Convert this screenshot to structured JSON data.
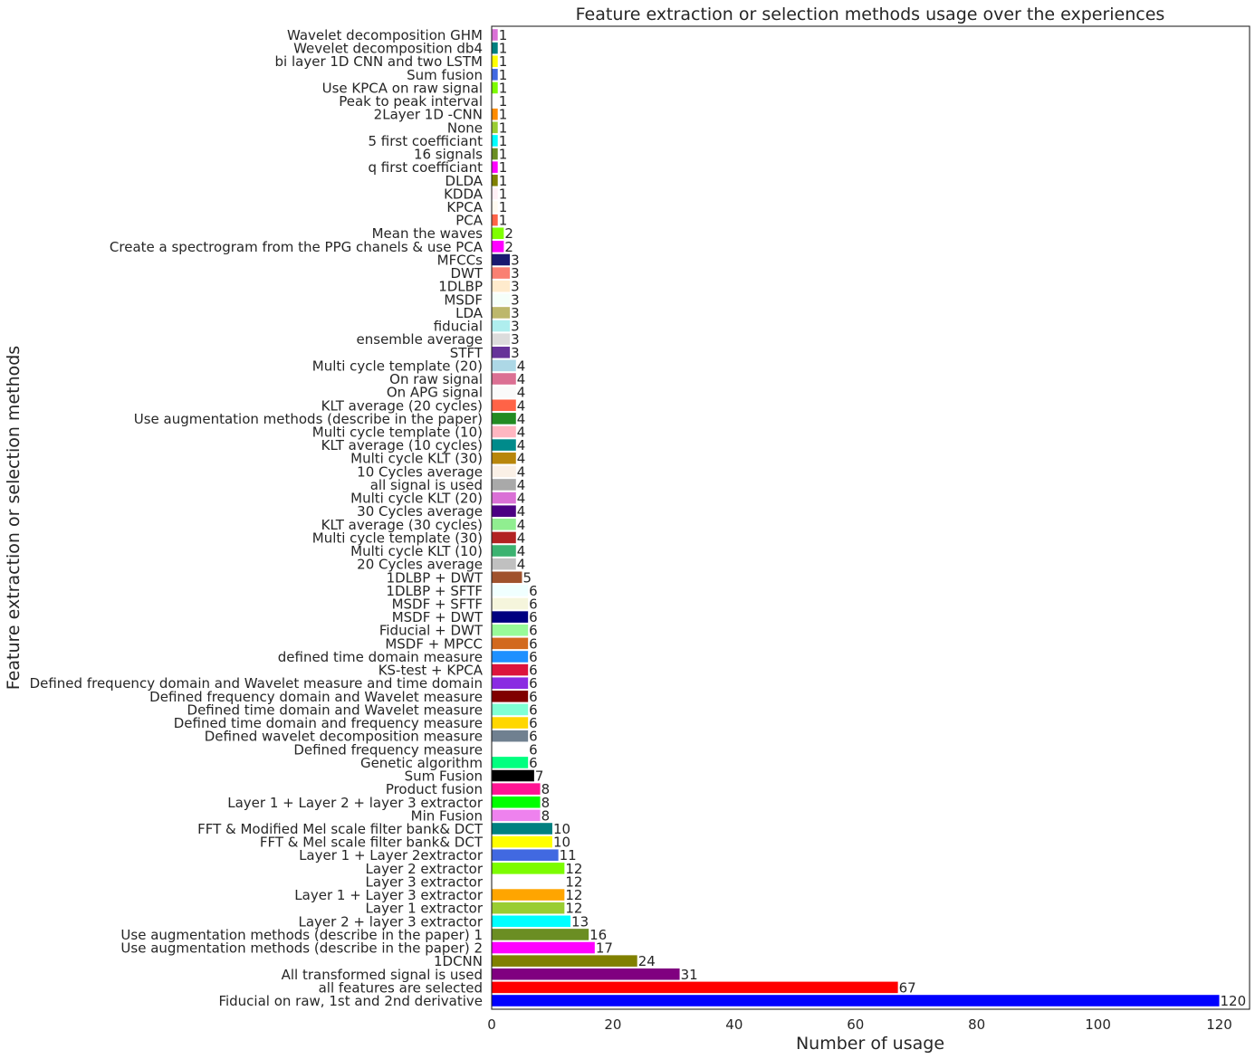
{
  "chart_data": {
    "type": "bar",
    "orientation": "horizontal",
    "title": "Feature extraction or selection methods usage over the experiences",
    "xlabel": "Number of usage",
    "ylabel": "Feature extraction or selection methods",
    "xlim": [
      0,
      125
    ],
    "x_ticks": [
      0,
      20,
      40,
      60,
      80,
      100,
      120
    ],
    "grid": false,
    "categories": [
      "Wavelet decomposition GHM",
      "Wevelet decomposition db4",
      "bi layer 1D CNN and two LSTM",
      "Sum fusion",
      "Use KPCA on raw signal",
      "Peak to peak interval",
      "2Layer 1D -CNN",
      "None",
      "5 first coefficiant",
      "16 signals",
      "q first coefficiant",
      "DLDA",
      "KDDA",
      "KPCA",
      "PCA",
      "Mean the waves",
      "Create a spectrogram from the PPG chanels & use PCA",
      "MFCCs",
      "DWT",
      "1DLBP",
      "MSDF",
      "LDA",
      "fiducial",
      "ensemble average",
      "STFT",
      "Multi cycle template (20)",
      "On raw signal",
      "On APG signal",
      "KLT average (20 cycles)",
      "Use augmentation methods (describe in the paper)",
      "Multi cycle template (10)",
      "KLT average (10 cycles)",
      "Multi cycle KLT (30)",
      "10 Cycles average",
      "all signal is used",
      "Multi cycle KLT (20)",
      "30 Cycles average",
      "KLT average (30 cycles)",
      "Multi cycle template (30)",
      "Multi cycle KLT (10)",
      "20 Cycles average",
      "1DLBP + DWT",
      "1DLBP + SFTF",
      "MSDF + SFTF",
      "MSDF + DWT",
      "Fiducial + DWT",
      "MSDF + MPCC",
      "defined time domain measure",
      "KS-test + KPCA",
      "Defined frequency domain and Wavelet measure and time domain",
      "Defined frequency domain and Wavelet measure",
      "Defined time domain and Wavelet measure",
      "Defined time domain and frequency measure",
      "Defined wavelet decomposition measure",
      "Defined frequency measure",
      "Genetic algorithm",
      "Sum Fusion",
      "Product fusion",
      "Layer 1 + Layer 2 + layer 3 extractor",
      "Min Fusion",
      "FFT & Modified Mel scale filter bank& DCT",
      "FFT & Mel scale filter bank& DCT",
      "Layer 1 + Layer 2extractor",
      "Layer 2 extractor",
      "Layer 3 extractor",
      "Layer 1 + Layer 3  extractor",
      "Layer 1 extractor",
      "Layer 2 + layer 3 extractor",
      "Use augmentation methods (describe in the paper) 1",
      "Use augmentation methods (describe in the paper) 2",
      "1DCNN",
      "All transformed signal is used",
      "all features are selected",
      "Fiducial on raw, 1st and 2nd derivative"
    ],
    "values": [
      1,
      1,
      1,
      1,
      1,
      1,
      1,
      1,
      1,
      1,
      1,
      1,
      1,
      1,
      1,
      2,
      2,
      3,
      3,
      3,
      3,
      3,
      3,
      3,
      3,
      4,
      4,
      4,
      4,
      4,
      4,
      4,
      4,
      4,
      4,
      4,
      4,
      4,
      4,
      4,
      4,
      5,
      6,
      6,
      6,
      6,
      6,
      6,
      6,
      6,
      6,
      6,
      6,
      6,
      6,
      6,
      7,
      8,
      8,
      8,
      10,
      10,
      11,
      12,
      12,
      12,
      12,
      13,
      16,
      17,
      24,
      31,
      67,
      120
    ],
    "value_labels": [
      "1",
      "1",
      "1",
      "1",
      "1",
      "1",
      "1",
      "1",
      "1",
      "1",
      "1",
      "1",
      "1",
      "1",
      "1",
      "2",
      "2",
      "3",
      "3",
      "3",
      "3",
      "3",
      "3",
      "3",
      "3",
      "4",
      "4",
      "4",
      "4",
      "4",
      "4",
      "4",
      "4",
      "4",
      "4",
      "4",
      "4",
      "4",
      "4",
      "4",
      "4",
      "5",
      "6",
      "6",
      "6",
      "6",
      "6",
      "6",
      "6",
      "6",
      "6",
      "6",
      "6",
      "6",
      "6",
      "6",
      "7",
      "8",
      "8",
      "8",
      "10",
      "10",
      "11",
      "12",
      "12",
      "12",
      "12",
      "13",
      "16",
      "17",
      "24",
      "31",
      "67",
      "120"
    ],
    "colors": [
      "#da70d6",
      "#008080",
      "#ffff00",
      "#4169e1",
      "#7cfc00",
      "#ffffff",
      "#ff8c00",
      "#9acd32",
      "#00ffff",
      "#6b8e23",
      "#ff00ff",
      "#808000",
      "#fff0f5",
      "#fffaf0",
      "#ff6347",
      "#7fff00",
      "#ff00ff",
      "#191970",
      "#fa8072",
      "#ffebcd",
      "#f5fffa",
      "#bdb76b",
      "#afeeee",
      "#dcdcdc",
      "#663399",
      "#add8e6",
      "#db7093",
      "#fafafa",
      "#ff6347",
      "#228b22",
      "#ffb6c1",
      "#008b8b",
      "#b8860b",
      "#faf0e6",
      "#a9a9a9",
      "#da70d6",
      "#4b0082",
      "#90ee90",
      "#b22222",
      "#3cb371",
      "#c0c0c0",
      "#a0522d",
      "#f0ffff",
      "#f5f5dc",
      "#000080",
      "#98fb98",
      "#d2691e",
      "#1e90ff",
      "#dc143c",
      "#8a2be2",
      "#800000",
      "#7fffd4",
      "#ffd700",
      "#708090",
      "#ffffff",
      "#00ff7f",
      "#000000",
      "#ff1493",
      "#00ff00",
      "#ee82ee",
      "#008080",
      "#ffff00",
      "#4169e1",
      "#7cfc00",
      "#ffffff",
      "#ffa500",
      "#9acd32",
      "#00ffff",
      "#6b8e23",
      "#ff00ff",
      "#808000",
      "#800080",
      "#ff0000",
      "#0000ff"
    ]
  }
}
